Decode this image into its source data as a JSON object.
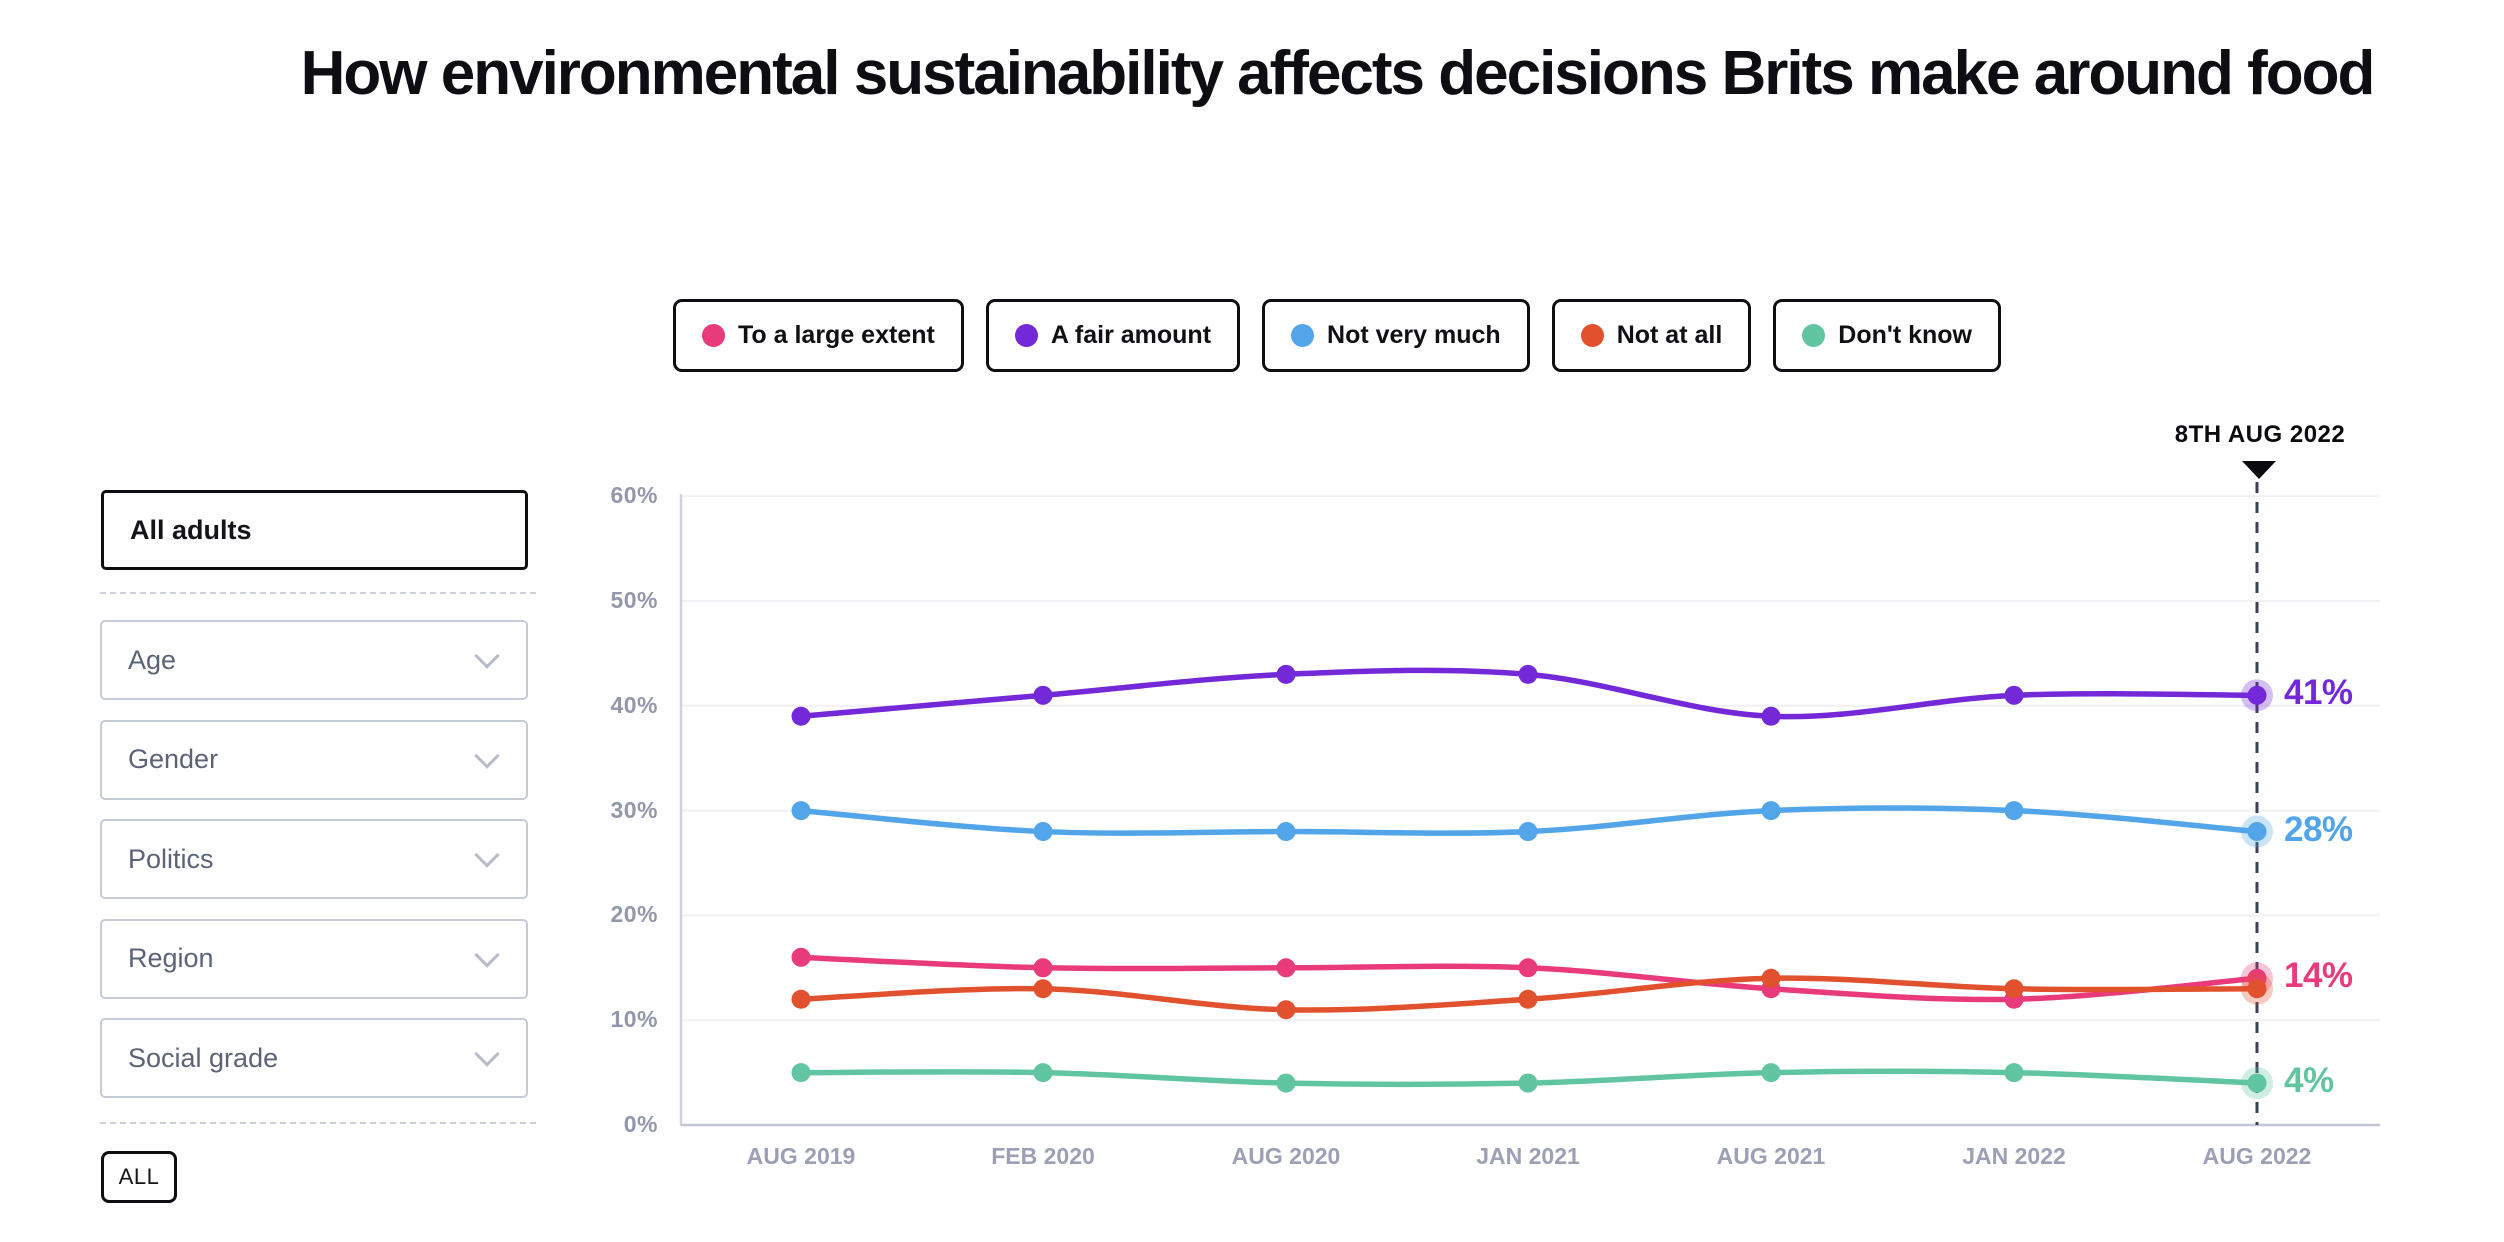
{
  "title": "How environmental sustainability affects decisions Brits make around food",
  "sidebar": {
    "selected_audience": "All adults",
    "filters": [
      "Age",
      "Gender",
      "Politics",
      "Region",
      "Social grade"
    ],
    "all_button_label": "ALL"
  },
  "annotation": {
    "date_label": "8TH AUG 2022"
  },
  "chart_data": {
    "type": "line",
    "title": "How environmental sustainability affects decisions Brits make around food",
    "categories": [
      "AUG 2019",
      "FEB 2020",
      "AUG 2020",
      "JAN 2021",
      "AUG 2021",
      "JAN 2022",
      "AUG 2022"
    ],
    "y_ticks": [
      "60%",
      "50%",
      "40%",
      "30%",
      "20%",
      "10%",
      "0%"
    ],
    "ylim": [
      0,
      60
    ],
    "grid": "horizontal",
    "legend_position": "top",
    "marker_annotation": {
      "label": "8TH AUG 2022",
      "category": "AUG 2022"
    },
    "series": [
      {
        "name": "To a large extent",
        "color": "#e93a7b",
        "values": [
          16,
          15,
          15,
          15,
          13,
          12,
          14
        ],
        "end_label": "14%"
      },
      {
        "name": "A fair amount",
        "color": "#7429d8",
        "values": [
          39,
          41,
          43,
          43,
          39,
          41,
          41
        ],
        "end_label": "41%"
      },
      {
        "name": "Not very much",
        "color": "#51a5e8",
        "values": [
          30,
          28,
          28,
          28,
          30,
          30,
          28
        ],
        "end_label": "28%"
      },
      {
        "name": "Not at all",
        "color": "#e2512e",
        "values": [
          12,
          13,
          11,
          12,
          14,
          13,
          13
        ],
        "end_label": ""
      },
      {
        "name": "Don't know",
        "color": "#60c5a0",
        "values": [
          5,
          5,
          4,
          4,
          5,
          5,
          4
        ],
        "end_label": "4%"
      }
    ]
  }
}
